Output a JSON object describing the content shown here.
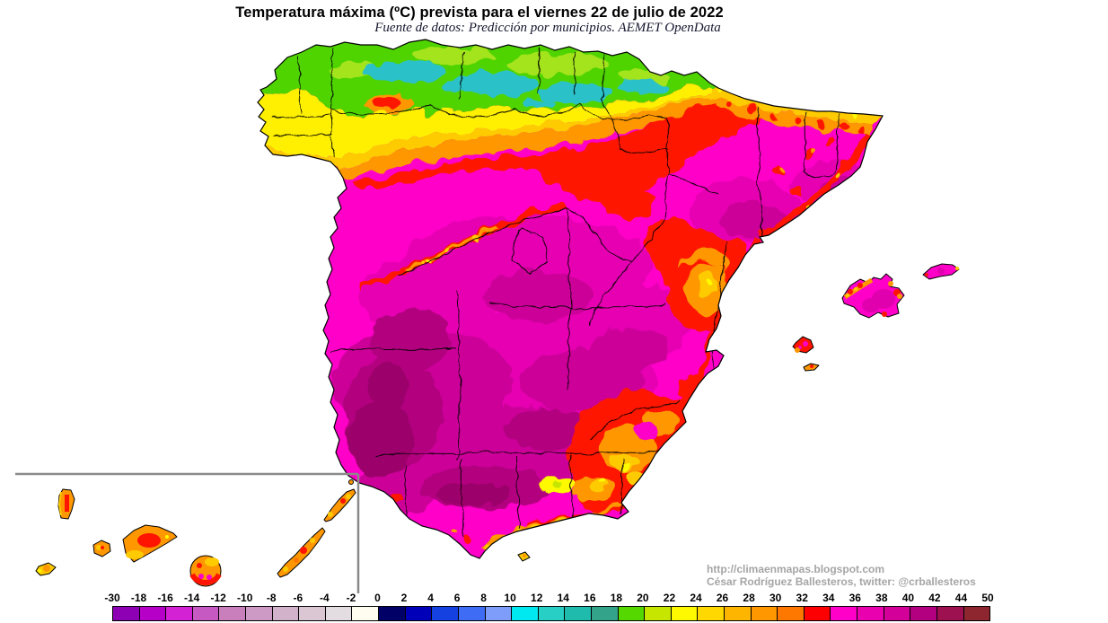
{
  "header": {
    "title": "Temperatura máxima (ºC) prevista para el viernes 22 de julio de 2022",
    "subtitle": "Fuente de datos: Predicción por municipios. AEMET OpenData"
  },
  "attribution": {
    "url": "http://climaenmapas.blogspot.com",
    "author": "César Rodríguez Ballesteros, twitter: @crballesteros"
  },
  "map": {
    "regions": {
      "peninsula": "Península (España)",
      "balearics": "Islas Baleares",
      "canaries": "Islas Canarias (recuadro)",
      "ceuta": "Ceuta"
    }
  },
  "chart_data": {
    "type": "heatmap",
    "title": "Temperatura máxima (ºC) prevista para el viernes 22 de julio de 2022",
    "legend_position": "bottom",
    "scale_unit": "ºC",
    "scale_ticks": [
      -30,
      -18,
      -16,
      -14,
      -12,
      -10,
      -8,
      -6,
      -4,
      -2,
      0,
      2,
      4,
      6,
      8,
      10,
      12,
      14,
      16,
      18,
      20,
      22,
      24,
      26,
      28,
      30,
      32,
      34,
      36,
      38,
      40,
      42,
      44,
      50
    ]
  },
  "colorbar": {
    "tick_labels": [
      "-30",
      "-18",
      "-16",
      "-14",
      "-12",
      "-10",
      "-8",
      "-6",
      "-4",
      "-2",
      "0",
      "2",
      "4",
      "6",
      "8",
      "10",
      "12",
      "14",
      "16",
      "18",
      "20",
      "22",
      "24",
      "26",
      "28",
      "30",
      "32",
      "34",
      "36",
      "38",
      "40",
      "42",
      "44",
      "50"
    ],
    "box_colors": [
      "#8d00b4",
      "#b600c8",
      "#d322d3",
      "#c75ac2",
      "#c97fbc",
      "#cc9ac4",
      "#d2b2ca",
      "#dbc7d3",
      "#e3dde1",
      "#fffdf0",
      "#000066",
      "#0000b8",
      "#1441e0",
      "#3f6cf4",
      "#7e9cfa",
      "#00e8f0",
      "#28cfc4",
      "#1fbcae",
      "#33a389",
      "#55d800",
      "#c6e600",
      "#fef900",
      "#fed800",
      "#feb500",
      "#fe9700",
      "#fe7800",
      "#fd0002",
      "#fe00c8",
      "#e900ae",
      "#d4009a",
      "#b30080",
      "#9e1150",
      "#8e262f"
    ]
  }
}
